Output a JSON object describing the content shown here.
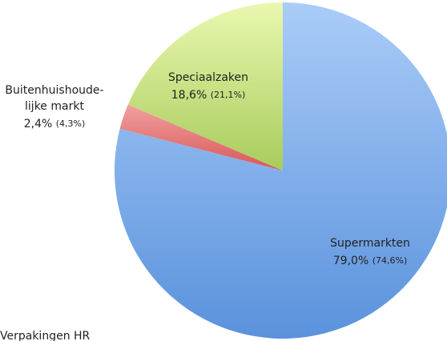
{
  "chart_data": {
    "type": "pie",
    "categories": [
      "Supermarkten",
      "Buitenhuishoude-\nlijke markt",
      "Speciaalzaken"
    ],
    "values": [
      79.0,
      2.4,
      18.6
    ],
    "value_labels": [
      "79,0%",
      "2,4%",
      "18,6%"
    ],
    "secondary_values": [
      74.6,
      4.3,
      21.1
    ],
    "secondary_labels": [
      "(74,6%)",
      "(4,3%)",
      "(21,1%)"
    ],
    "colors": [
      "#78a8e8",
      "#e06c6c",
      "#c0dc80"
    ],
    "note": "Verpakingen HR"
  }
}
